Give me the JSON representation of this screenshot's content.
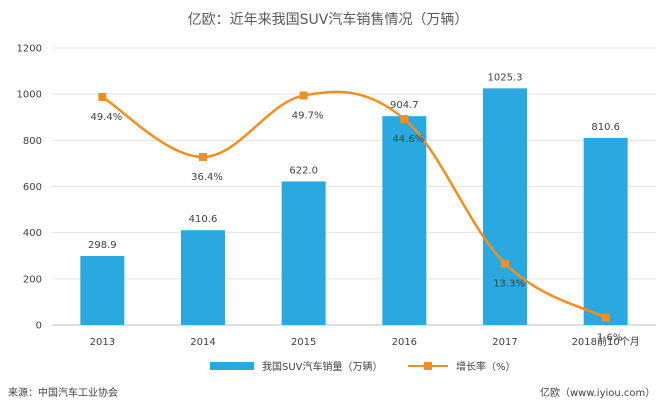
{
  "title": "亿欧：近年来我国SUV汽车销售情况（万辆）",
  "chart_data": {
    "type": "bar",
    "title": "亿欧：近年来我国SUV汽车销售情况（万辆）",
    "categories": [
      "2013",
      "2014",
      "2015",
      "2016",
      "2017",
      "2018前10个月"
    ],
    "ylim": [
      0,
      1200
    ],
    "yticks": [
      0,
      200,
      400,
      600,
      800,
      1000,
      1200
    ],
    "grid": true,
    "legend_position": "bottom",
    "series": [
      {
        "name": "我国SUV汽车销量（万辆）",
        "type": "bar",
        "values": [
          298.9,
          410.6,
          622.0,
          904.7,
          1025.3,
          810.6
        ],
        "labels": [
          "298.9",
          "410.6",
          "622.0",
          "904.7",
          "1025.3",
          "810.6"
        ],
        "color": "#2aa9e0"
      },
      {
        "name": "增长率（%）",
        "type": "line",
        "values": [
          49.4,
          36.4,
          49.7,
          44.6,
          13.3,
          1.6
        ],
        "labels": [
          "49.4%",
          "36.4%",
          "49.7%",
          "44.6%",
          "13.3%",
          "1.6%"
        ],
        "color": "#f28e1c"
      }
    ]
  },
  "legend": {
    "bar_label": "我国SUV汽车销量（万辆）",
    "line_label": "增长率（%）"
  },
  "footer": {
    "source": "来源：中国汽车工业协会",
    "brand": "亿欧（www.iyiou.com）"
  }
}
